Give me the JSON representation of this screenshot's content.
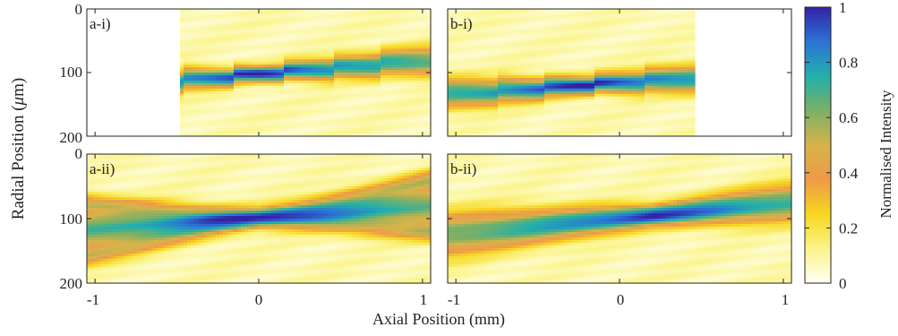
{
  "chart_data": {
    "type": "heatmap",
    "xlabel": "Axial Position (mm)",
    "ylabel": "Radial Position (μm)",
    "ylabel_prefix": "Radial Position (",
    "ylabel_mu": "μ",
    "ylabel_suffix": "m)",
    "colorbar": {
      "label": "Normalised Intensity",
      "range": [
        0,
        1
      ],
      "ticks": [
        0,
        0.2,
        0.4,
        0.6,
        0.8,
        1
      ],
      "tick_labels": [
        "0",
        "0.2",
        "0.4",
        "0.6",
        "0.8",
        "1"
      ],
      "colors": [
        "#fffff4",
        "#fbf48a",
        "#f6d71f",
        "#ee9a47",
        "#d8b34a",
        "#7bb065",
        "#22b0aa",
        "#2c72d6",
        "#3223a6"
      ]
    },
    "x_axis": {
      "range": [
        -1.05,
        1.05
      ],
      "ticks": [
        -1,
        0,
        1
      ],
      "tick_labels": [
        "-1",
        "0",
        "1"
      ]
    },
    "y_axis": {
      "range": [
        0,
        200
      ],
      "ticks": [
        0,
        100,
        200
      ],
      "tick_labels": [
        "0",
        "100",
        "200"
      ],
      "reversed": true
    },
    "panels": [
      {
        "label": "a-i)",
        "x_extent": [
          -0.48,
          1.05
        ],
        "beam_start": 125,
        "beam_end": 80,
        "focus_x": 0,
        "sigma": 8,
        "side_lobes": false,
        "steps": 7
      },
      {
        "label": "b-i)",
        "x_extent": [
          -1.05,
          0.45
        ],
        "beam_start": 135,
        "beam_end": 97,
        "focus_x": -0.2,
        "sigma": 9,
        "side_lobes": false,
        "steps": 7
      },
      {
        "label": "a-ii)",
        "x_extent": [
          -1.05,
          1.05
        ],
        "beam_start": 118,
        "beam_end": 80,
        "focus_x": 0,
        "sigma": 10,
        "side_lobes": true,
        "steps": 0
      },
      {
        "label": "b-ii)",
        "x_extent": [
          -1.05,
          1.05
        ],
        "beam_start": 125,
        "beam_end": 75,
        "focus_x": 0.2,
        "sigma": 11,
        "side_lobes": false,
        "steps": 0
      }
    ]
  }
}
